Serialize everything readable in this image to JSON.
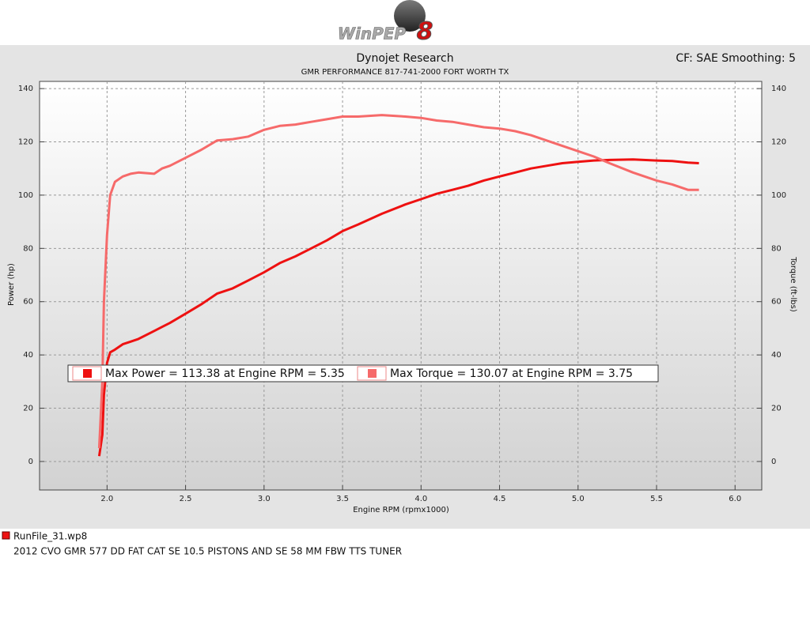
{
  "chart_data": {
    "type": "line",
    "logo": "WinPEP",
    "logo_number": "8",
    "title": "Dynojet Research",
    "subtitle": "GMR PERFORMANCE 817-741-2000  FORT WORTH TX",
    "annotation": "CF: SAE Smoothing: 5",
    "x_label": "Engine RPM (rpmx1000)",
    "y_label": "Power (hp)",
    "y2_label": "Torque (ft-lbs)",
    "x": [
      1.95,
      1.97,
      1.98,
      2.0,
      2.02,
      2.05,
      2.1,
      2.15,
      2.2,
      2.3,
      2.35,
      2.4,
      2.5,
      2.6,
      2.7,
      2.8,
      2.9,
      3.0,
      3.1,
      3.2,
      3.3,
      3.4,
      3.5,
      3.6,
      3.75,
      3.9,
      4.0,
      4.1,
      4.2,
      4.3,
      4.4,
      4.5,
      4.6,
      4.7,
      4.8,
      4.9,
      5.0,
      5.1,
      5.2,
      5.35,
      5.5,
      5.6,
      5.7,
      5.77
    ],
    "series": [
      {
        "name": "Max Power = 113.38 at Engine RPM = 5.35",
        "color": "#ee1111",
        "axis": "y",
        "values": [
          2,
          10,
          25,
          37,
          41,
          42,
          44,
          45,
          46,
          49,
          50.5,
          52,
          55.5,
          59,
          63,
          65,
          68,
          71,
          74.5,
          77,
          80,
          83,
          86.5,
          89,
          93,
          96.5,
          98.5,
          100.5,
          102,
          103.5,
          105.5,
          107,
          108.5,
          110,
          111,
          112,
          112.5,
          113,
          113.2,
          113.38,
          113,
          112.8,
          112.2,
          112
        ]
      },
      {
        "name": "Max Torque = 130.07 at Engine RPM = 3.75",
        "color": "#f66a6a",
        "axis": "y2",
        "values": [
          5,
          30,
          60,
          85,
          100,
          105,
          107,
          108,
          108.5,
          108,
          110,
          111,
          114,
          117,
          120.5,
          121,
          122,
          124.5,
          126,
          126.5,
          127.5,
          128.5,
          129.5,
          129.5,
          130.07,
          129.5,
          129,
          128,
          127.5,
          126.5,
          125.5,
          125,
          124,
          122.5,
          120.5,
          118.5,
          116.5,
          114.5,
          112,
          108.5,
          105.5,
          104,
          102,
          102
        ]
      }
    ],
    "xlim": [
      1.57,
      6.17
    ],
    "xticks": [
      {
        "value": 2,
        "label": "2.0"
      },
      {
        "value": 2.5,
        "label": "2.5"
      },
      {
        "value": 3,
        "label": "3.0"
      },
      {
        "value": 3.5,
        "label": "3.5"
      },
      {
        "value": 4,
        "label": "4.0"
      },
      {
        "value": 4.5,
        "label": "4.5"
      },
      {
        "value": 5,
        "label": "5.0"
      },
      {
        "value": 5.5,
        "label": "5.5"
      },
      {
        "value": 6,
        "label": "6.0"
      }
    ],
    "ylim": [
      -10.7,
      142.7
    ],
    "yticks": [
      0,
      20,
      40,
      60,
      80,
      100,
      120,
      140
    ],
    "y2lim": [
      -10.7,
      142.7
    ],
    "y2ticks": [
      0,
      20,
      40,
      60,
      80,
      100,
      120,
      140
    ],
    "grid": true,
    "run_file": "RunFile_31.wp8",
    "run_description": "2012 CVO GMR 577  DD FAT CAT SE 10.5 PISTONS AND SE 58 MM FBW TTS TUNER"
  }
}
